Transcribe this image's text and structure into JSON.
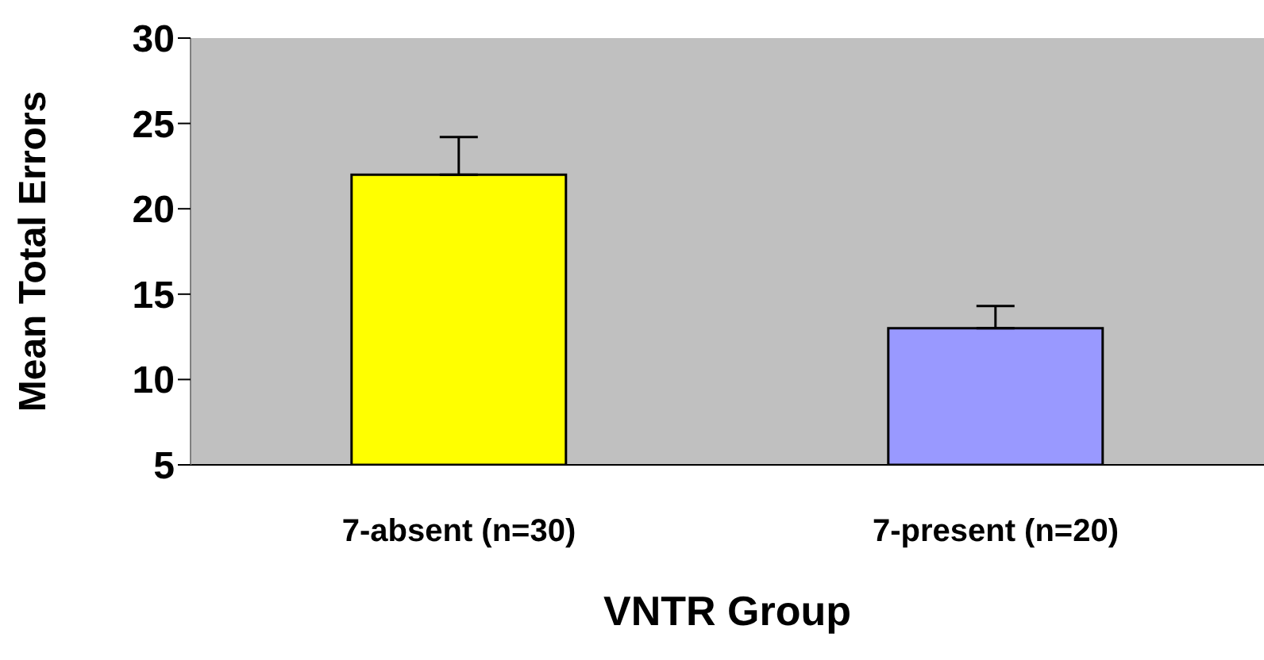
{
  "chart_data": {
    "type": "bar",
    "xlabel": "VNTR Group",
    "ylabel": "Mean Total Errors",
    "categories": [
      "7-absent (n=30)",
      "7-present (n=20)"
    ],
    "values": [
      22,
      13
    ],
    "colors": [
      "#ffff00",
      "#9999ff"
    ],
    "errors": [
      [
        22,
        24.2
      ],
      [
        13,
        14.3
      ]
    ],
    "ylim": [
      5,
      30
    ],
    "yticks": [
      5,
      10,
      15,
      20,
      25,
      30
    ]
  }
}
